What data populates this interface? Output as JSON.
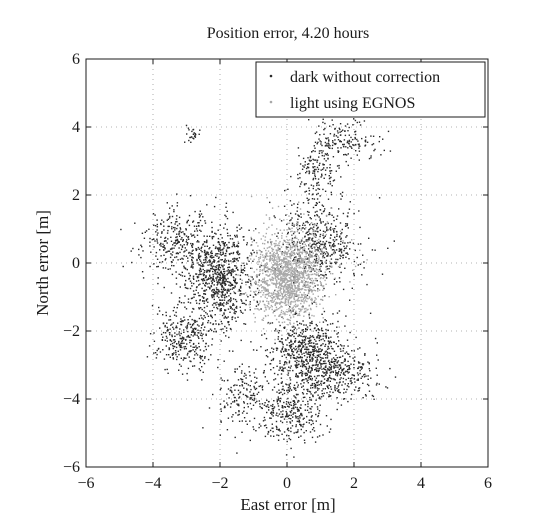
{
  "chart_data": {
    "type": "scatter",
    "title": "Position error,  4.20 hours",
    "xlabel": "East error [m]",
    "ylabel": "North error [m]",
    "xlim": [
      -6,
      6
    ],
    "ylim": [
      -6,
      6
    ],
    "xticks": [
      "−6",
      "−4",
      "−2",
      "0",
      "2",
      "4",
      "6"
    ],
    "yticks": [
      "−6",
      "−4",
      "−2",
      "0",
      "2",
      "4",
      "6"
    ],
    "grid": true,
    "legend": {
      "placement": "top-right",
      "entries": [
        "dark without correction",
        "light using EGNOS"
      ]
    },
    "series": [
      {
        "name": "dark without correction",
        "color": "#2a2a2a",
        "clusters": [
          {
            "cx": -2.0,
            "cy": -0.4,
            "sx": 0.55,
            "sy": 0.75,
            "n": 900
          },
          {
            "cx": -3.4,
            "cy": 0.6,
            "sx": 0.45,
            "sy": 0.45,
            "n": 260
          },
          {
            "cx": -3.1,
            "cy": -2.2,
            "sx": 0.45,
            "sy": 0.5,
            "n": 300
          },
          {
            "cx": 0.6,
            "cy": -2.6,
            "sx": 0.6,
            "sy": 0.55,
            "n": 650
          },
          {
            "cx": 1.5,
            "cy": -3.3,
            "sx": 0.7,
            "sy": 0.35,
            "n": 300
          },
          {
            "cx": 0.1,
            "cy": -4.4,
            "sx": 0.5,
            "sy": 0.45,
            "n": 320
          },
          {
            "cx": -1.4,
            "cy": -3.9,
            "sx": 0.35,
            "sy": 0.5,
            "n": 150
          },
          {
            "cx": 1.0,
            "cy": 0.6,
            "sx": 0.6,
            "sy": 0.65,
            "n": 500
          },
          {
            "cx": 0.9,
            "cy": 2.6,
            "sx": 0.3,
            "sy": 0.5,
            "n": 160
          },
          {
            "cx": 1.7,
            "cy": 3.6,
            "sx": 0.5,
            "sy": 0.3,
            "n": 160
          },
          {
            "cx": -2.8,
            "cy": 3.8,
            "sx": 0.12,
            "sy": 0.12,
            "n": 25
          }
        ]
      },
      {
        "name": "light using EGNOS",
        "color": "#a8a8a8",
        "clusters": [
          {
            "cx": 0.0,
            "cy": -0.5,
            "sx": 0.5,
            "sy": 0.6,
            "n": 1300
          },
          {
            "cx": 0.3,
            "cy": 0.3,
            "sx": 0.7,
            "sy": 0.6,
            "n": 250
          }
        ]
      }
    ]
  }
}
